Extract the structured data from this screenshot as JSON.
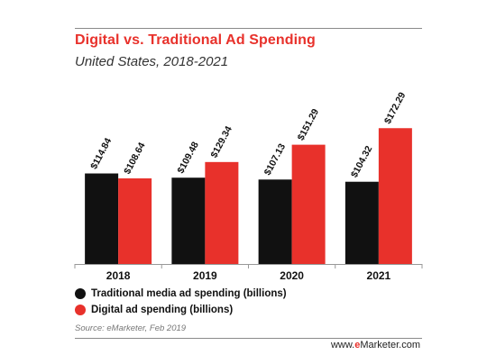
{
  "header": {
    "title": "Digital vs. Traditional Ad Spending",
    "subtitle": "United States, 2018-2021"
  },
  "chart_data": {
    "type": "bar",
    "title": "Digital vs. Traditional Ad Spending",
    "subtitle": "United States, 2018-2021",
    "categories": [
      "2018",
      "2019",
      "2020",
      "2021"
    ],
    "series": [
      {
        "name": "Traditional media ad spending (billions)",
        "values": [
          114.84,
          109.48,
          107.13,
          104.32
        ],
        "labels": [
          "$114.84",
          "$109.48",
          "$107.13",
          "$104.32"
        ],
        "color": "#111111"
      },
      {
        "name": "Digital ad spending (billions)",
        "values": [
          108.64,
          129.34,
          151.29,
          172.29
        ],
        "labels": [
          "$108.64",
          "$129.34",
          "$151.29",
          "$172.29"
        ],
        "color": "#e8312b"
      }
    ],
    "ylim": [
      0,
      200
    ],
    "grid": false,
    "legend_position": "bottom-left"
  },
  "footer": {
    "source": "Source: eMarketer, Feb 2019",
    "brand_prefix": "www.",
    "brand_e": "e",
    "brand_rest": "Marketer.com"
  },
  "colors": {
    "accent": "#e8312b",
    "traditional": "#111111",
    "digital": "#e8312b"
  }
}
